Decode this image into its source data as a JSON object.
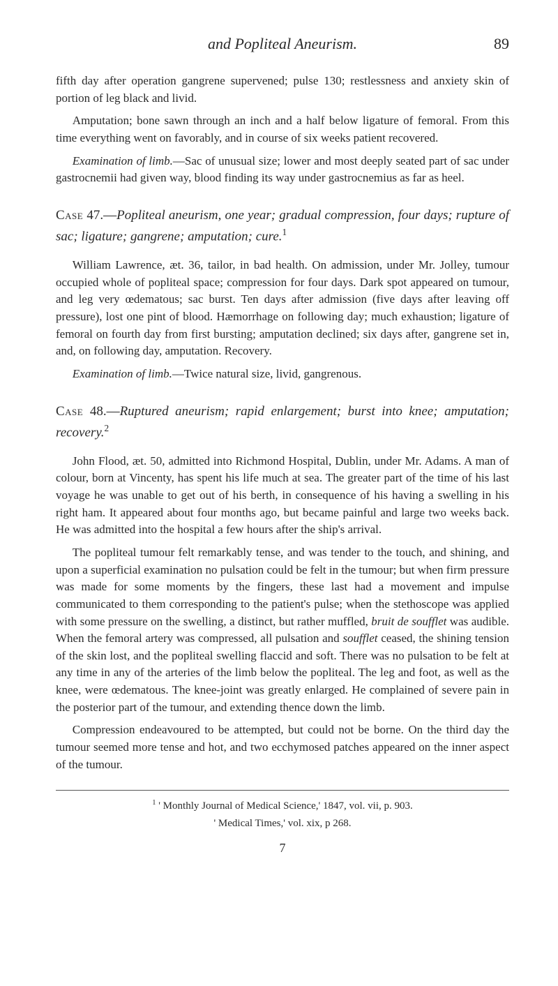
{
  "header": {
    "running_head": "and Popliteal Aneurism.",
    "page_number": "89"
  },
  "body": {
    "p1": "fifth day after operation gangrene supervened; pulse 130; restlessness and anxiety skin of portion of leg black and livid.",
    "p2": "Amputation; bone sawn through an inch and a half below ligature of femoral. From this time everything went on favorably, and in course of six weeks patient recovered.",
    "p3_label": "Examination of limb.",
    "p3_rest": "—Sac of unusual size; lower and most deeply seated part of sac under gastrocnemii had given way, blood finding its way under gastrocnemius as far as heel.",
    "case47": {
      "label": "Case",
      "num": "47.—",
      "title_italic": "Popliteal aneurism, one year; gradual compression, four days; rupture of sac; ligature; gangrene; ampu­tation; cure.",
      "sup": "1"
    },
    "p4": "William Lawrence, æt. 36, tailor, in bad health. On admission, under Mr. Jolley, tumour occupied whole of popliteal space; compression for four days. Dark spot appeared on tumour, and leg very œdematous; sac burst. Ten days after admission (five days after leaving off pressure), lost one pint of blood. Hæmorrhage on follow­ing day; much exhaustion; ligature of femoral on fourth day from first bursting; am­putation declined; six days after, gangrene set in, and, on following day, amputa­tion. Recovery.",
    "p5_label": "Examination of limb.",
    "p5_rest": "—Twice natural size, livid, gangrenous.",
    "case48": {
      "label": "Case",
      "num": "48.—",
      "title_italic": "Ruptured aneurism; rapid enlargement; burst into knee; amputation; recovery.",
      "sup": "2"
    },
    "p6": "John Flood, æt. 50, admitted into Richmond Hospital, Dublin, under Mr. Adams. A man of colour, born at Vincenty, has spent his life much at sea. The greater part of the time of his last voyage he was unable to get out of his berth, in conse­quence of his having a swelling in his right ham. It appeared about four months ago, but became painful and large two weeks back. He was admitted into the hos­pital a few hours after the ship's arrival.",
    "p7a": "The popliteal tumour felt remarkably tense, and was tender to the touch, and shining, and upon a superficial examination no pulsation could be felt in the tumour; but when firm pressure was made for some moments by the fingers, these last had a movement and impulse communicated to them corresponding to the patient's pulse; when the stethoscope was applied with some pressure on the swelling, a distinct, but rather muffled, ",
    "p7_bruit": "bruit de soufflet",
    "p7b": " was audible. When the femoral artery was com­pressed, all pulsation and ",
    "p7_soufflet": "soufflet",
    "p7c": " ceased, the shining tension of the skin lost, and the popliteal swelling flaccid and soft. There was no pulsation to be felt at any time in any of the arteries of the limb below the popliteal. The leg and foot, as well as the knee, were œdematous. The knee-joint was greatly enlarged. He complained of severe pain in the posterior part of the tumour, and extending thence down the limb.",
    "p8": "Compression endeavoured to be attempted, but could not be borne. On the third day the tumour seemed more tense and hot, and two ecchymosed patches appeared on the inner aspect of the tumour."
  },
  "footnotes": {
    "f1_sup": "1",
    "f1": " ' Monthly Journal of Medical Science,' 1847, vol. vii, p. 903.",
    "f2": "' Medical Times,' vol. xix, p 268."
  },
  "signature": "7"
}
